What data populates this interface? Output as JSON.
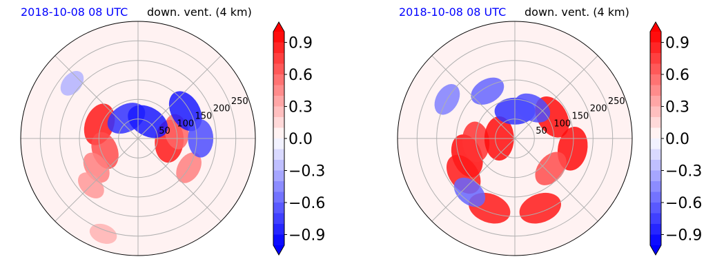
{
  "colors": {
    "positive": "#ff0000",
    "negative": "#0000ff",
    "neutral": "#ffffff",
    "grid": "#b0b0b0",
    "date_title": "#0000ff"
  },
  "chart_data": [
    {
      "type": "heatmap",
      "projection": "polar",
      "title_left": "2018-10-08 08 UTC",
      "title_right": "down. vent. (4 km)",
      "radial_ticks": [
        "50",
        "100",
        "150",
        "200",
        "250"
      ],
      "radial_tick_values": [
        50,
        100,
        150,
        200,
        250
      ],
      "rlim": [
        0,
        300
      ],
      "grid": true,
      "colorbar": {
        "ticks": [
          "0.9",
          "0.6",
          "0.3",
          "0.0",
          "−0.3",
          "−0.6",
          "−0.9"
        ],
        "tick_values": [
          0.9,
          0.6,
          0.3,
          0.0,
          -0.3,
          -0.6,
          -0.9
        ],
        "vmin": -1.0,
        "vmax": 1.0,
        "levels": 20,
        "cmap": "bwr",
        "extend": "both"
      },
      "features": [
        {
          "r": 105,
          "theta": 160,
          "value": 0.9
        },
        {
          "r": 90,
          "theta": 200,
          "value": 0.7
        },
        {
          "r": 130,
          "theta": 215,
          "value": 0.5
        },
        {
          "r": 170,
          "theta": 225,
          "value": 0.4
        },
        {
          "r": 80,
          "theta": 355,
          "value": 0.9
        },
        {
          "r": 100,
          "theta": 10,
          "value": 0.6
        },
        {
          "r": 150,
          "theta": 330,
          "value": 0.5
        },
        {
          "r": 60,
          "theta": 120,
          "value": -0.8
        },
        {
          "r": 50,
          "theta": 60,
          "value": -0.9
        },
        {
          "r": 140,
          "theta": 30,
          "value": -0.9
        },
        {
          "r": 160,
          "theta": 0,
          "value": -0.7
        },
        {
          "r": 220,
          "theta": 140,
          "value": -0.3
        },
        {
          "r": 260,
          "theta": 250,
          "value": 0.3
        }
      ]
    },
    {
      "type": "heatmap",
      "projection": "polar",
      "title_left": "2018-10-08 08 UTC",
      "title_right": "down. vent. (4 km)",
      "radial_ticks": [
        "50",
        "100",
        "150",
        "200",
        "250"
      ],
      "radial_tick_values": [
        50,
        100,
        150,
        200,
        250
      ],
      "rlim": [
        0,
        300
      ],
      "grid": true,
      "colorbar": {
        "ticks": [
          "0.9",
          "0.6",
          "0.3",
          "0.0",
          "−0.3",
          "−0.6",
          "−0.9"
        ],
        "tick_values": [
          0.9,
          0.6,
          0.3,
          0.0,
          -0.3,
          -0.6,
          -0.9
        ],
        "vmin": -1.0,
        "vmax": 1.0,
        "levels": 20,
        "cmap": "bwr",
        "extend": "both"
      },
      "features": [
        {
          "r": 130,
          "theta": 200,
          "value": 0.95
        },
        {
          "r": 160,
          "theta": 215,
          "value": 0.9
        },
        {
          "r": 100,
          "theta": 185,
          "value": 0.8
        },
        {
          "r": 190,
          "theta": 250,
          "value": 0.9
        },
        {
          "r": 110,
          "theta": 30,
          "value": 0.95
        },
        {
          "r": 150,
          "theta": 350,
          "value": 0.95
        },
        {
          "r": 120,
          "theta": 320,
          "value": 0.7
        },
        {
          "r": 190,
          "theta": 290,
          "value": 0.9
        },
        {
          "r": 40,
          "theta": 180,
          "value": 0.95
        },
        {
          "r": 140,
          "theta": 120,
          "value": -0.6
        },
        {
          "r": 200,
          "theta": 150,
          "value": -0.5
        },
        {
          "r": 180,
          "theta": 230,
          "value": -0.6
        },
        {
          "r": 70,
          "theta": 90,
          "value": -0.8
        },
        {
          "r": 90,
          "theta": 60,
          "value": -0.7
        }
      ]
    }
  ]
}
